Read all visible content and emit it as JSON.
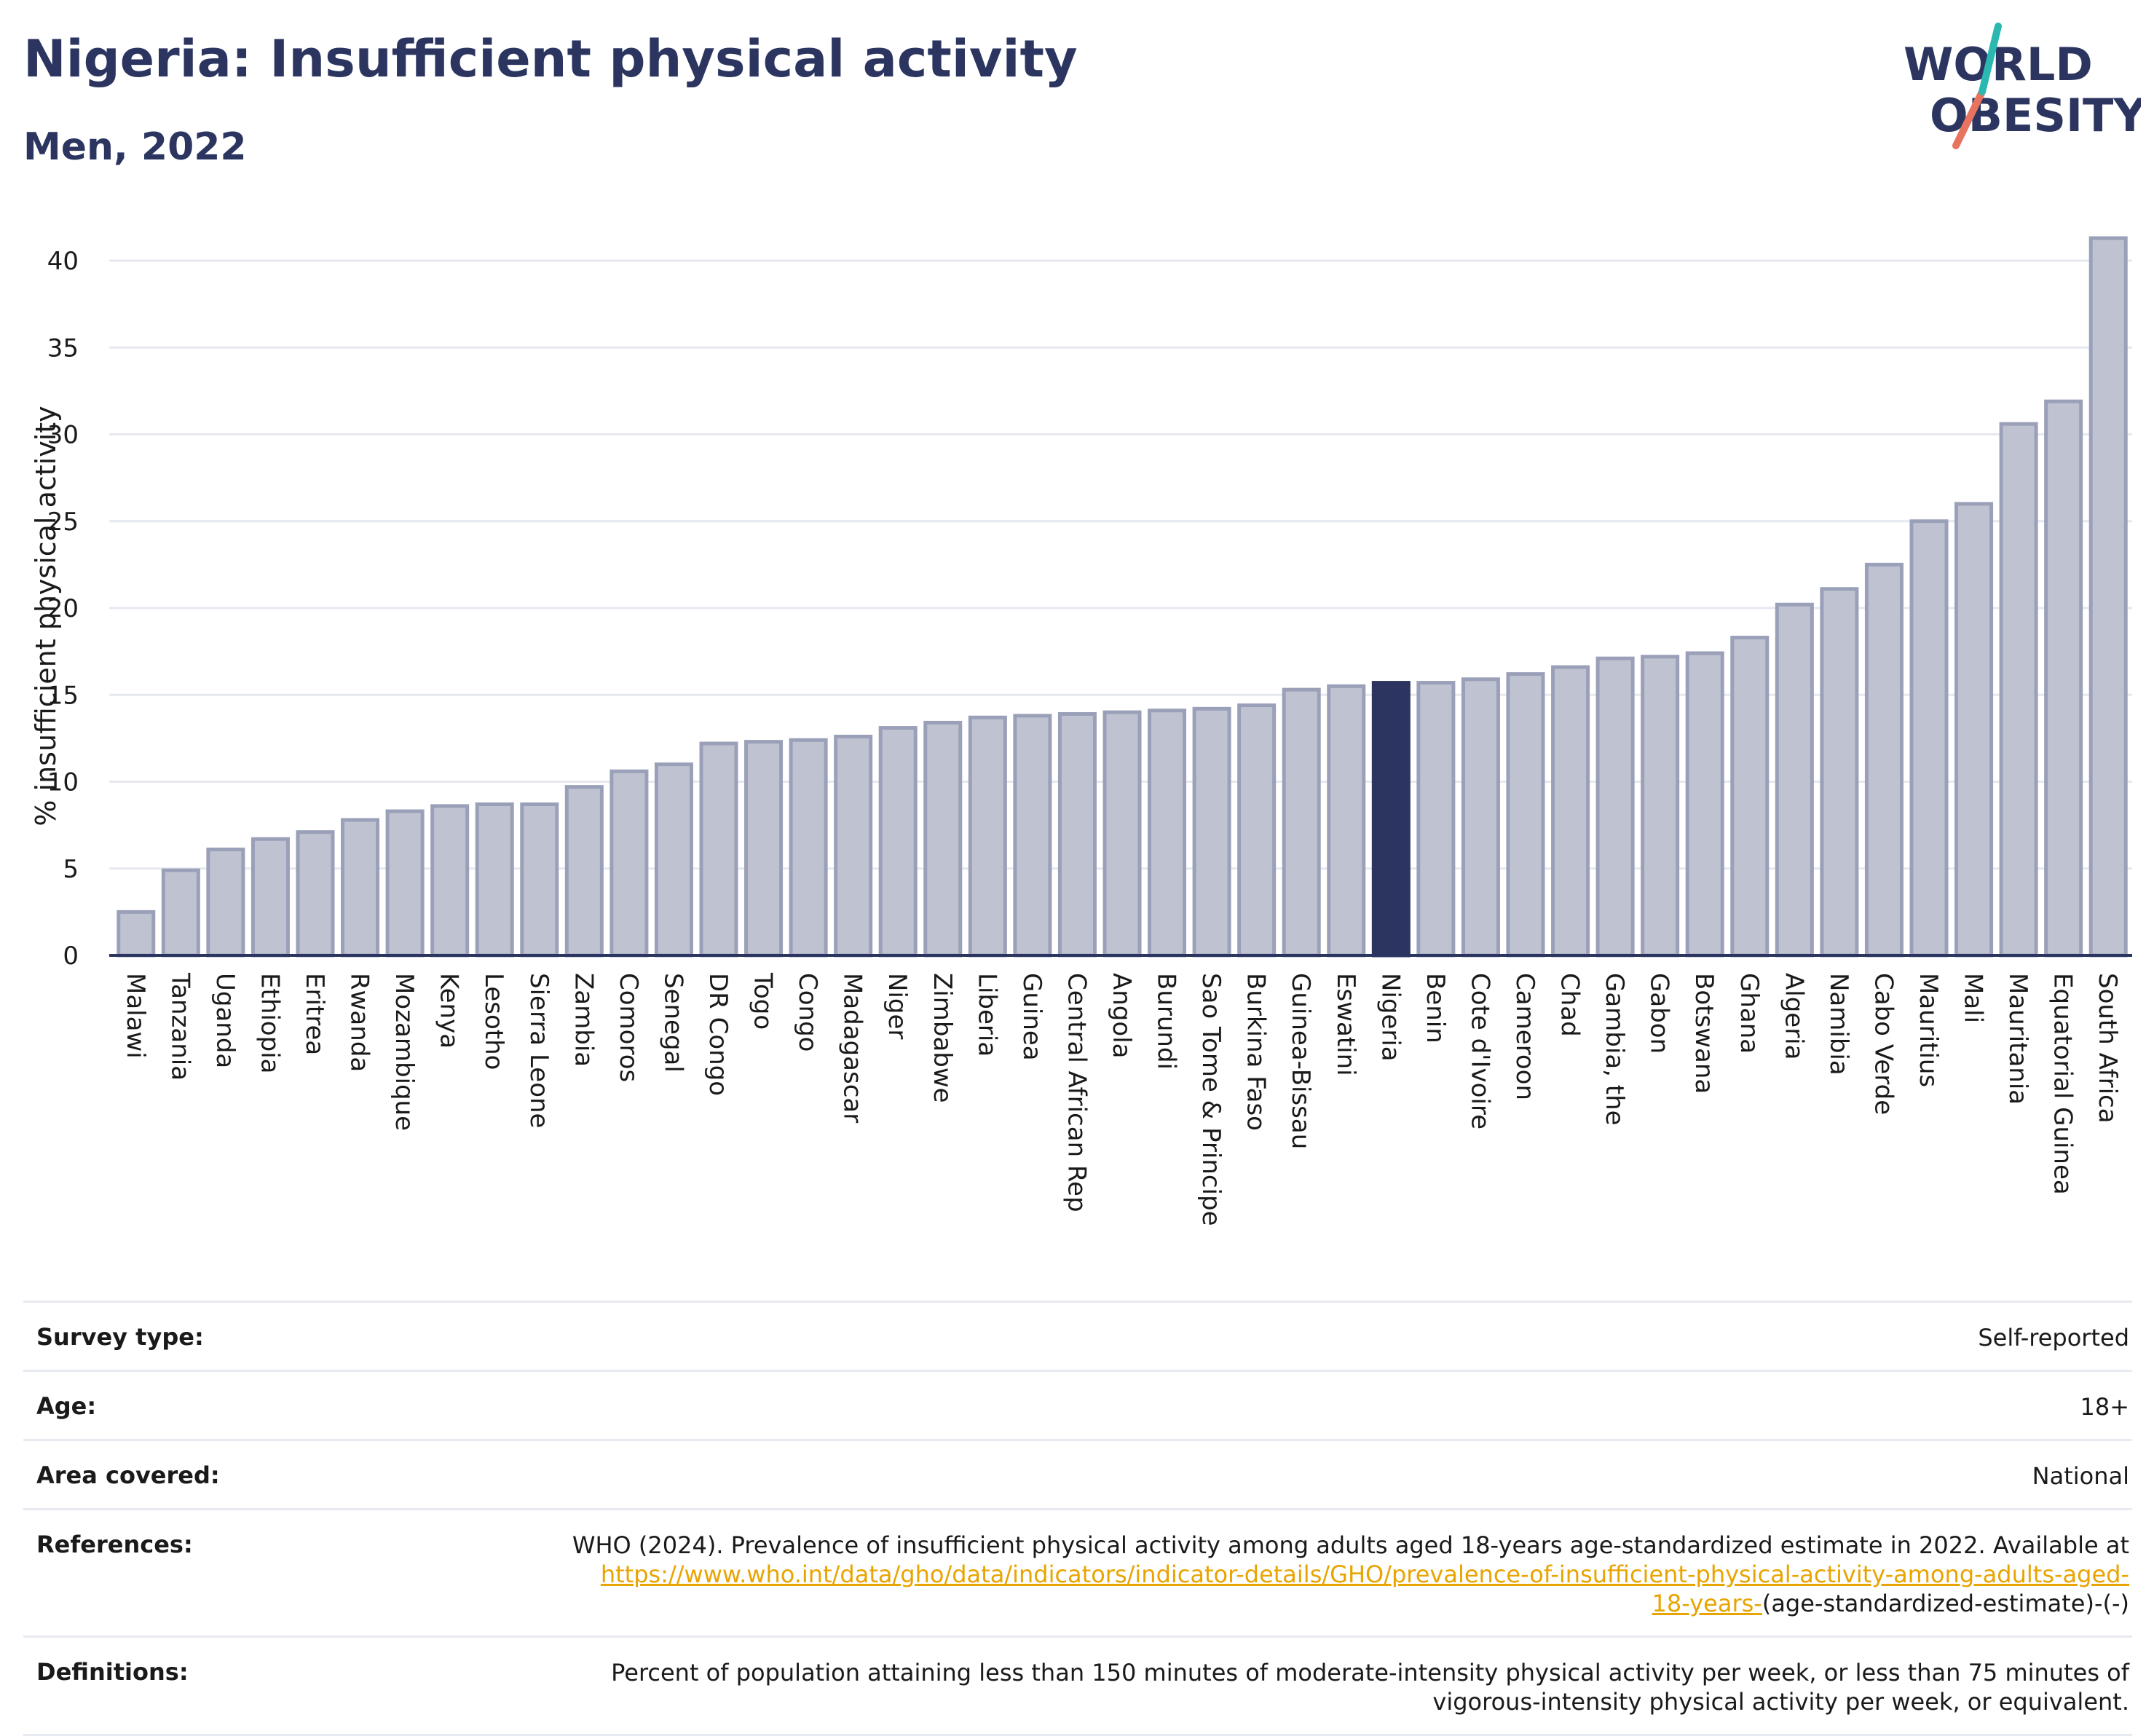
{
  "header": {
    "title": "Nigeria: Insufficient physical activity",
    "subtitle": "Men, 2022"
  },
  "logo": {
    "line1": "WORLD",
    "line2": "OBESITY"
  },
  "colors": {
    "bar_default": "#bfc3d1",
    "bar_border": "#9aa0b8",
    "bar_highlight": "#2b3560",
    "title": "#2b3560",
    "link": "#e8a400"
  },
  "chart_data": {
    "type": "bar",
    "title": "Nigeria: Insufficient physical activity",
    "subtitle": "Men, 2022",
    "ylabel": "% insufficient physical activity",
    "xlabel": "",
    "ylim": [
      0,
      42
    ],
    "yticks": [
      0,
      5,
      10,
      15,
      20,
      25,
      30,
      35,
      40
    ],
    "grid": true,
    "highlight": "Nigeria",
    "categories": [
      "Malawi",
      "Tanzania",
      "Uganda",
      "Ethiopia",
      "Eritrea",
      "Rwanda",
      "Mozambique",
      "Kenya",
      "Lesotho",
      "Sierra Leone",
      "Zambia",
      "Comoros",
      "Senegal",
      "DR Congo",
      "Togo",
      "Congo",
      "Madagascar",
      "Niger",
      "Zimbabwe",
      "Liberia",
      "Guinea",
      "Central African Rep",
      "Angola",
      "Burundi",
      "Sao Tome & Principe",
      "Burkina Faso",
      "Guinea-Bissau",
      "Eswatini",
      "Nigeria",
      "Benin",
      "Cote d'Ivoire",
      "Cameroon",
      "Chad",
      "Gambia, the",
      "Gabon",
      "Botswana",
      "Ghana",
      "Algeria",
      "Namibia",
      "Cabo Verde",
      "Mauritius",
      "Mali",
      "Mauritania",
      "Equatorial Guinea",
      "South Africa"
    ],
    "values": [
      2.5,
      4.9,
      6.1,
      6.7,
      7.1,
      7.8,
      8.3,
      8.6,
      8.7,
      8.7,
      9.7,
      10.6,
      11.0,
      12.2,
      12.3,
      12.4,
      12.6,
      13.1,
      13.4,
      13.7,
      13.8,
      13.9,
      14.0,
      14.1,
      14.2,
      14.4,
      15.3,
      15.5,
      15.7,
      15.7,
      15.9,
      16.2,
      16.6,
      17.1,
      17.2,
      17.4,
      18.3,
      20.2,
      21.1,
      22.5,
      25.0,
      26.0,
      30.6,
      31.9,
      41.3
    ]
  },
  "info": {
    "rows": [
      {
        "label": "Survey type:",
        "value": "Self-reported"
      },
      {
        "label": "Age:",
        "value": "18+"
      },
      {
        "label": "Area covered:",
        "value": "National"
      }
    ],
    "references_label": "References:",
    "references_text": "WHO (2024). Prevalence of insufficient physical activity among adults aged 18-years age-standardized estimate in 2022. Available at",
    "references_link_a": "https://www.who.int/data/gho/data/indicators/indicator-details/GHO/prevalence-of-insufficient-physical-activity-among-adults-aged-",
    "references_link_b": "18-years-",
    "references_tail": "(age-standardized-estimate)-(-)",
    "definitions_label": "Definitions:",
    "definitions_line1": "Percent of population attaining less than 150 minutes of moderate-intensity physical activity per week, or less than 75 minutes of",
    "definitions_line2": "vigorous-intensity physical activity per week, or equivalent."
  }
}
